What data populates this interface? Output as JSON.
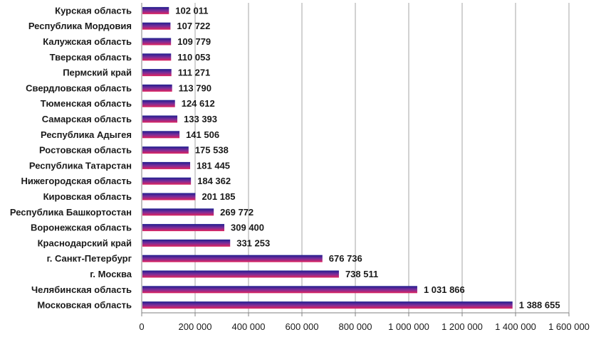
{
  "chart_data": {
    "type": "bar",
    "orientation": "horizontal",
    "categories": [
      "Московская область",
      "Челябинская область",
      "г. Москва",
      "г. Санкт-Петербург",
      "Краснодарский край",
      "Воронежская область",
      "Республика Башкортостан",
      "Кировская область",
      "Нижегородская область",
      "Республика Татарстан",
      "Ростовская область",
      "Республика Адыгея",
      "Самарская область",
      "Тюменская область",
      "Свердловская область",
      "Пермский край",
      "Тверская область",
      "Калужская область",
      "Республика Мордовия",
      "Курская область"
    ],
    "values": [
      1388655,
      1031866,
      738511,
      676736,
      331253,
      309400,
      269772,
      201185,
      184362,
      181445,
      175538,
      141506,
      133393,
      124612,
      113790,
      111271,
      110053,
      109779,
      107722,
      102011
    ],
    "value_labels": [
      "1 388 655",
      "1 031 866",
      "738 511",
      "676 736",
      "331 253",
      "309 400",
      "269 772",
      "201 185",
      "184 362",
      "181 445",
      "175 538",
      "141 506",
      "133 393",
      "124 612",
      "113 790",
      "111 271",
      "110 053",
      "109 779",
      "107 722",
      "102 011"
    ],
    "x_ticks": [
      0,
      200000,
      400000,
      600000,
      800000,
      1000000,
      1200000,
      1400000,
      1600000
    ],
    "x_tick_labels": [
      "0",
      "200 000",
      "400 000",
      "600 000",
      "800 000",
      "1 000 000",
      "1 200 000",
      "1 400 000",
      "1 600 000"
    ],
    "xlim": [
      0,
      1600000
    ],
    "grid": "vertical",
    "legend": "none",
    "title": "",
    "xlabel": "",
    "ylabel": "",
    "colors": {
      "bar_top": "#1f1f8f",
      "bar_mid": "#7a2d9a",
      "bar_bottom": "#e0245e",
      "grid": "#a6a6a6",
      "axis": "#808080",
      "text": "#1a1a1a"
    }
  }
}
